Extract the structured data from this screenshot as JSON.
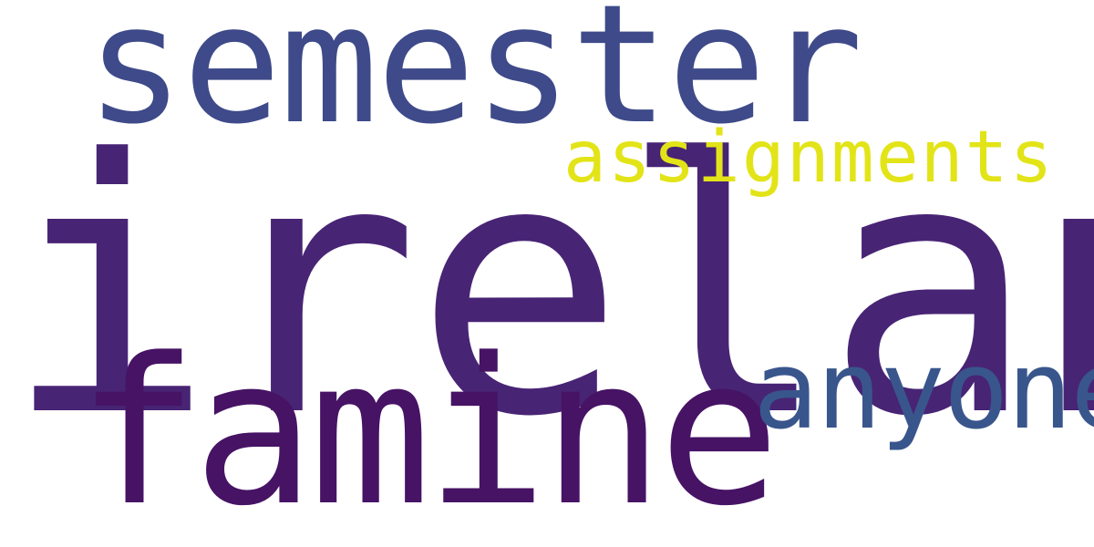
{
  "word_cloud": {
    "background_color": "#ffffff",
    "words": {
      "ireland": {
        "text": "ireland",
        "color": "#482475"
      },
      "semester": {
        "text": "semester",
        "color": "#3e4a89"
      },
      "famine": {
        "text": "famine",
        "color": "#471365"
      },
      "anyone": {
        "text": "anyone",
        "color": "#39568c"
      },
      "assignments": {
        "text": "assignments",
        "color": "#e2e418"
      }
    }
  }
}
